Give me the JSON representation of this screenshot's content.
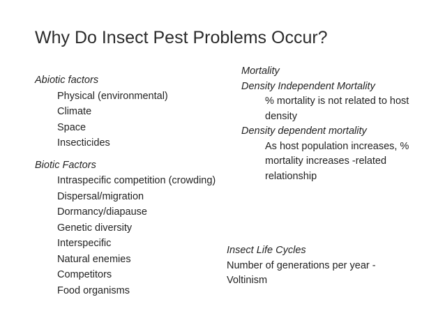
{
  "slide": {
    "title": "Why Do Insect Pest Problems Occur?"
  },
  "abiotic": {
    "heading": "Abiotic factors",
    "items": [
      "Physical (environmental)",
      "Climate",
      "Space",
      "Insecticides"
    ]
  },
  "biotic": {
    "heading": "Biotic Factors",
    "items": [
      "Intraspecific competition (crowding)",
      "Dispersal/migration",
      "Dormancy/diapause",
      "Genetic diversity",
      "Interspecific",
      "Natural enemies",
      "Competitors",
      "Food organisms"
    ]
  },
  "mortality": {
    "heading": "Mortality",
    "independent_heading": "Density Independent Mortality",
    "independent_lines": [
      "% mortality is not related to host",
      "density"
    ],
    "dependent_heading": "Density dependent mortality",
    "dependent_lines": [
      "As host population increases, %",
      "mortality increases -related",
      "relationship"
    ]
  },
  "life_cycles": {
    "heading": "Insect Life Cycles",
    "lines": [
      "Number of generations per year -",
      "Voltinism"
    ]
  }
}
